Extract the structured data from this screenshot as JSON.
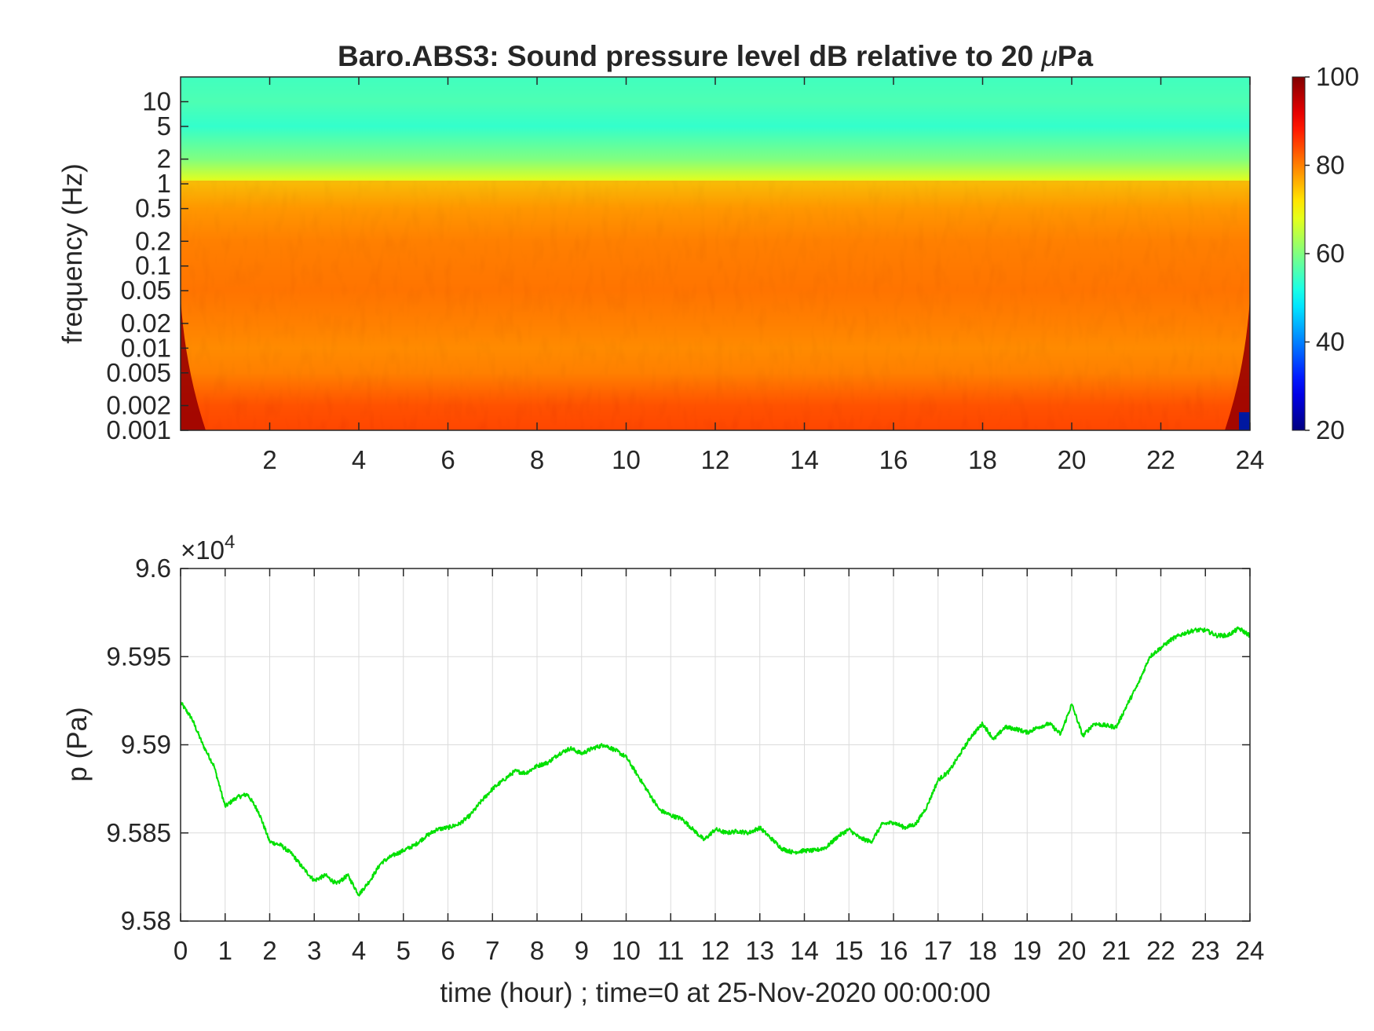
{
  "chart_data": [
    {
      "type": "heatmap",
      "title": "Baro.ABS3: Sound pressure level dB relative to 20 μPa",
      "title_prefix": "Baro.ABS3: Sound pressure level dB relative to 20 ",
      "title_symbol": "μ",
      "title_suffix": "Pa",
      "ylabel": "frequency (Hz)",
      "xlabel": "",
      "xlim": [
        0,
        24
      ],
      "ylim": [
        0.001,
        20
      ],
      "yscale": "log",
      "x_ticks": [
        "2",
        "4",
        "6",
        "8",
        "10",
        "12",
        "14",
        "16",
        "18",
        "20",
        "22",
        "24"
      ],
      "x_tick_values": [
        2,
        4,
        6,
        8,
        10,
        12,
        14,
        16,
        18,
        20,
        22,
        24
      ],
      "y_ticks": [
        "10",
        "5",
        "2",
        "1",
        "0.5",
        "0.2",
        "0.1",
        "0.05",
        "0.02",
        "0.01",
        "0.005",
        "0.002",
        "0.001"
      ],
      "y_tick_values": [
        10,
        5,
        2,
        1,
        0.5,
        0.2,
        0.1,
        0.05,
        0.02,
        0.01,
        0.005,
        0.002,
        0.001
      ],
      "colorbar": {
        "range": [
          20,
          100
        ],
        "ticks": [
          "100",
          "80",
          "60",
          "40",
          "20"
        ],
        "tick_values": [
          100,
          80,
          60,
          40,
          20
        ],
        "colormap": "jet"
      },
      "level_profile": [
        {
          "f": 20,
          "db": 55
        },
        {
          "f": 10,
          "db": 56
        },
        {
          "f": 5,
          "db": 54
        },
        {
          "f": 2,
          "db": 60
        },
        {
          "f": 1,
          "db": 69
        },
        {
          "f": 0.5,
          "db": 76
        },
        {
          "f": 0.2,
          "db": 80
        },
        {
          "f": 0.1,
          "db": 81
        },
        {
          "f": 0.05,
          "db": 82
        },
        {
          "f": 0.02,
          "db": 80
        },
        {
          "f": 0.01,
          "db": 78
        },
        {
          "f": 0.005,
          "db": 80
        },
        {
          "f": 0.002,
          "db": 88
        },
        {
          "f": 0.001,
          "db": 90
        }
      ],
      "grid": false
    },
    {
      "type": "line",
      "xlabel": "time (hour) ; time=0 at 25-Nov-2020 00:00:00",
      "ylabel": "p (Pa)",
      "xlim": [
        0,
        24
      ],
      "ylim": [
        95800,
        96000
      ],
      "exponent_label_base": "×10",
      "exponent_label_power": "4",
      "x_ticks": [
        "0",
        "1",
        "2",
        "3",
        "4",
        "5",
        "6",
        "7",
        "8",
        "9",
        "10",
        "11",
        "12",
        "13",
        "14",
        "15",
        "16",
        "17",
        "18",
        "19",
        "20",
        "21",
        "22",
        "23",
        "24"
      ],
      "x_tick_values": [
        0,
        1,
        2,
        3,
        4,
        5,
        6,
        7,
        8,
        9,
        10,
        11,
        12,
        13,
        14,
        15,
        16,
        17,
        18,
        19,
        20,
        21,
        22,
        23,
        24
      ],
      "y_ticks": [
        "9.6",
        "9.595",
        "9.59",
        "9.585",
        "9.58"
      ],
      "y_tick_values": [
        96000,
        95950,
        95900,
        95850,
        95800
      ],
      "grid": true,
      "series": [
        {
          "color": "#00e000",
          "x": [
            0,
            0.25,
            0.5,
            0.75,
            1,
            1.25,
            1.5,
            1.75,
            2,
            2.25,
            2.5,
            2.75,
            3,
            3.25,
            3.5,
            3.75,
            4,
            4.25,
            4.5,
            4.75,
            5,
            5.25,
            5.5,
            5.75,
            6,
            6.25,
            6.5,
            6.75,
            7,
            7.25,
            7.5,
            7.75,
            8,
            8.25,
            8.5,
            8.75,
            9,
            9.25,
            9.5,
            9.75,
            10,
            10.25,
            10.5,
            10.75,
            11,
            11.25,
            11.5,
            11.75,
            12,
            12.25,
            12.5,
            12.75,
            13,
            13.25,
            13.5,
            13.75,
            14,
            14.25,
            14.5,
            14.75,
            15,
            15.25,
            15.5,
            15.75,
            16,
            16.25,
            16.5,
            16.75,
            17,
            17.25,
            17.5,
            17.75,
            18,
            18.25,
            18.5,
            18.75,
            19,
            19.25,
            19.5,
            19.75,
            20,
            20.25,
            20.5,
            20.75,
            21,
            21.25,
            21.5,
            21.75,
            22,
            22.25,
            22.5,
            22.75,
            23,
            23.25,
            23.5,
            23.75,
            24
          ],
          "y": [
            95924,
            95915,
            95900,
            95888,
            95865,
            95870,
            95872,
            95862,
            95845,
            95843,
            95838,
            95830,
            95823,
            95826,
            95821,
            95826,
            95815,
            95823,
            95833,
            95837,
            95840,
            95843,
            95848,
            95852,
            95853,
            95855,
            95860,
            95868,
            95875,
            95880,
            95885,
            95884,
            95888,
            95890,
            95895,
            95898,
            95895,
            95898,
            95900,
            95897,
            95893,
            95883,
            95873,
            95863,
            95860,
            95858,
            95852,
            95846,
            95852,
            95850,
            95851,
            95850,
            95853,
            95847,
            95841,
            95839,
            95840,
            95840,
            95842,
            95848,
            95852,
            95847,
            95845,
            95855,
            95856,
            95853,
            95855,
            95865,
            95880,
            95885,
            95895,
            95905,
            95912,
            95903,
            95910,
            95909,
            95907,
            95910,
            95912,
            95906,
            95923,
            95905,
            95912,
            95911,
            95910,
            95923,
            95935,
            95950,
            95955,
            95960,
            95963,
            95965,
            95965,
            95962,
            95962,
            95966,
            95962
          ]
        }
      ]
    }
  ]
}
